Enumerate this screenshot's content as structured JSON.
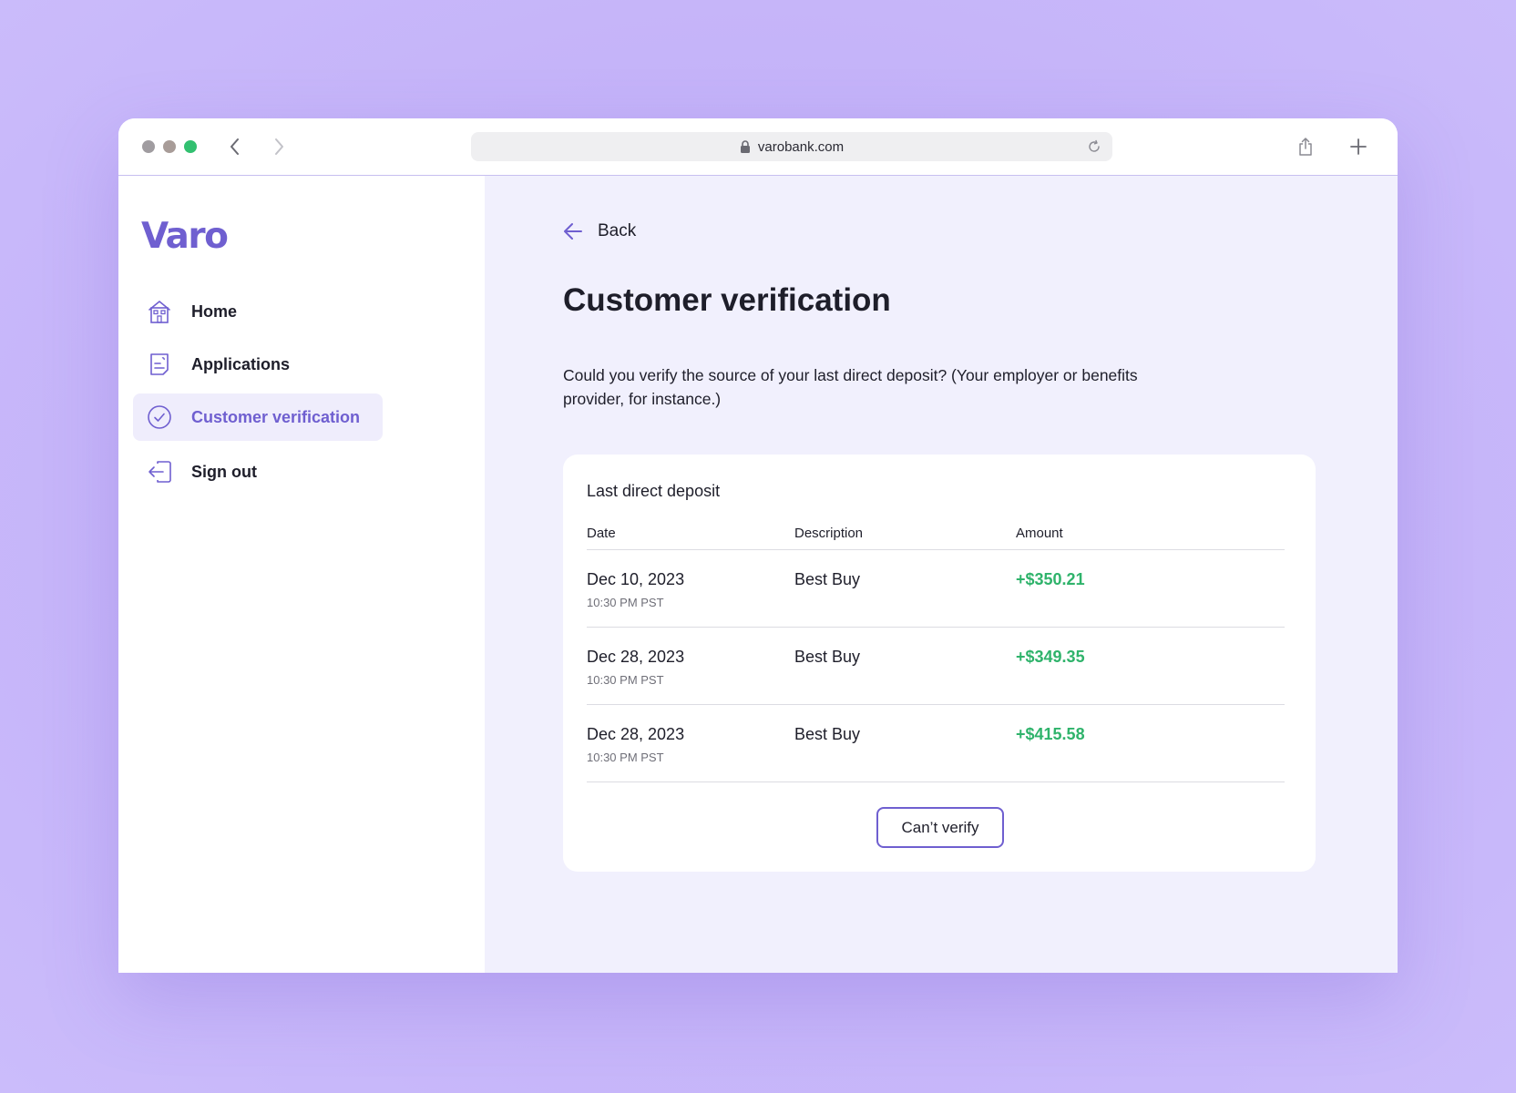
{
  "browser": {
    "url": "varobank.com",
    "icons": [
      "back-arrow-icon",
      "forward-arrow-icon",
      "lock-icon",
      "reload-icon",
      "share-icon",
      "plus-icon"
    ]
  },
  "sidebar": {
    "logo": "Varo",
    "items": [
      {
        "label": "Home",
        "icon": "home-icon",
        "active": false
      },
      {
        "label": "Applications",
        "icon": "document-icon",
        "active": false
      },
      {
        "label": "Customer verification",
        "icon": "check-circle-icon",
        "active": true
      },
      {
        "label": "Sign out",
        "icon": "sign-out-icon",
        "active": false
      }
    ]
  },
  "main": {
    "back_label": "Back",
    "title": "Customer verification",
    "intro": "Could you verify the source of your last direct deposit? (Your employer or benefits provider, for instance.)",
    "card": {
      "title": "Last direct deposit",
      "columns": [
        "Date",
        "Description",
        "Amount"
      ],
      "rows": [
        {
          "date": "Dec 10, 2023",
          "time": "10:30 PM PST",
          "description": "Best Buy",
          "amount": "+$350.21"
        },
        {
          "date": "Dec 28, 2023",
          "time": "10:30 PM PST",
          "description": "Best Buy",
          "amount": "+$349.35"
        },
        {
          "date": "Dec 28, 2023",
          "time": "10:30 PM PST",
          "description": "Best Buy",
          "amount": "+$415.58"
        }
      ],
      "button_label": "Can’t verify"
    }
  },
  "colors": {
    "brand": "#6f5fd0",
    "positive": "#2fb36b",
    "background": "#c3b1f8",
    "main_bg": "#f1f0fd"
  }
}
